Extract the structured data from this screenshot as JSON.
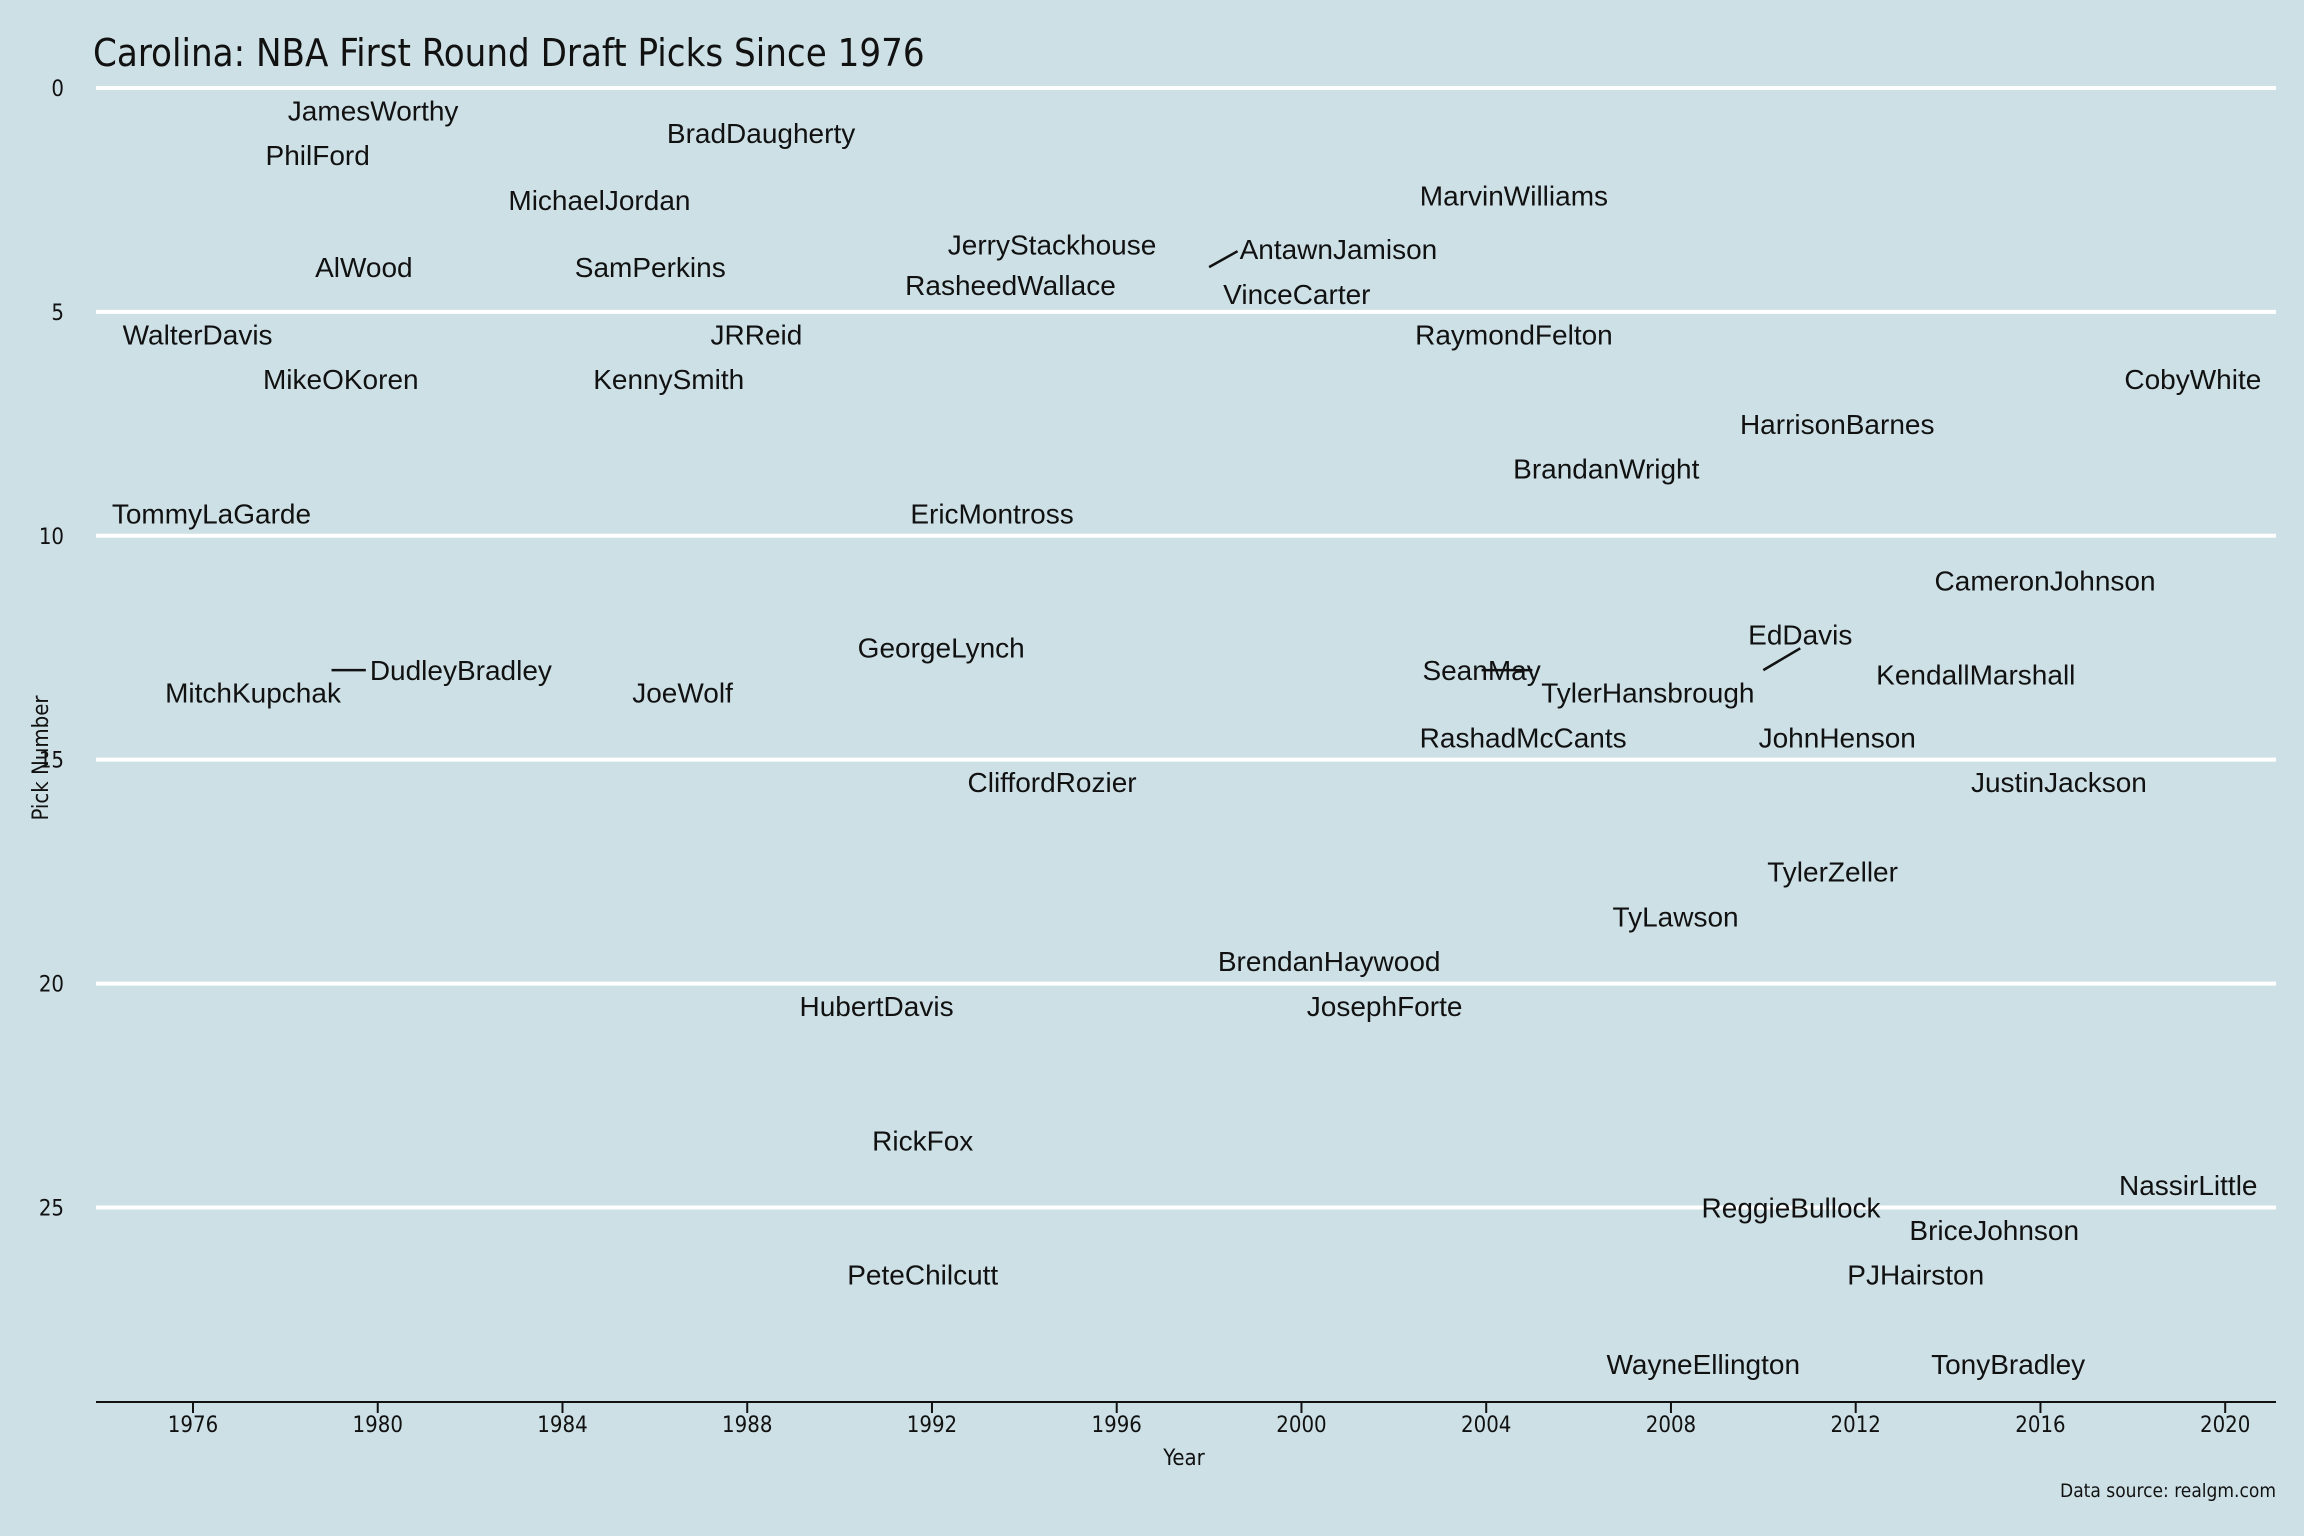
{
  "chart_data": {
    "type": "scatter",
    "title": "Carolina: NBA First Round Draft Picks Since 1976",
    "xlabel": "Year",
    "ylabel": "Pick Number",
    "caption": "Data source: realgm.com",
    "xlim": [
      1973.9,
      2021.1
    ],
    "ylim": [
      0,
      29.3
    ],
    "y_reversed": true,
    "x_ticks": [
      1976,
      1980,
      1984,
      1988,
      1992,
      1996,
      2000,
      2004,
      2008,
      2012,
      2016,
      2020
    ],
    "y_ticks": [
      0,
      5,
      10,
      15,
      20,
      25
    ],
    "grid": "horizontal",
    "background": "#cde0e6",
    "points": [
      {
        "label": "JamesWorthy",
        "x": 1979.9,
        "y": 0.5
      },
      {
        "label": "PhilFord",
        "x": 1978.7,
        "y": 1.5
      },
      {
        "label": "BradDaugherty",
        "x": 1988.3,
        "y": 1.0
      },
      {
        "label": "MichaelJordan",
        "x": 1984.8,
        "y": 2.5
      },
      {
        "label": "MarvinWilliams",
        "x": 2004.6,
        "y": 2.4
      },
      {
        "label": "JerryStackhouse",
        "x": 1994.6,
        "y": 3.5
      },
      {
        "label": "AntawnJamison",
        "x": 2000.8,
        "y": 3.6
      },
      {
        "label": "AlWood",
        "x": 1979.7,
        "y": 4.0
      },
      {
        "label": "SamPerkins",
        "x": 1985.9,
        "y": 4.0
      },
      {
        "label": "RasheedWallace",
        "x": 1993.7,
        "y": 4.4
      },
      {
        "label": "VinceCarter",
        "x": 1999.9,
        "y": 4.6
      },
      {
        "label": "WalterDavis",
        "x": 1976.1,
        "y": 5.5
      },
      {
        "label": "JRReid",
        "x": 1988.2,
        "y": 5.5
      },
      {
        "label": "RaymondFelton",
        "x": 2004.6,
        "y": 5.5
      },
      {
        "label": "MikeOKoren",
        "x": 1979.2,
        "y": 6.5
      },
      {
        "label": "KennySmith",
        "x": 1986.3,
        "y": 6.5
      },
      {
        "label": "CobyWhite",
        "x": 2019.3,
        "y": 6.5
      },
      {
        "label": "HarrisonBarnes",
        "x": 2011.6,
        "y": 7.5
      },
      {
        "label": "BrandanWright",
        "x": 2006.6,
        "y": 8.5
      },
      {
        "label": "TommyLaGarde",
        "x": 1976.4,
        "y": 9.5
      },
      {
        "label": "EricMontross",
        "x": 1993.3,
        "y": 9.5
      },
      {
        "label": "CameronJohnson",
        "x": 2016.1,
        "y": 11.0
      },
      {
        "label": "GeorgeLynch",
        "x": 1992.2,
        "y": 12.5
      },
      {
        "label": "EdDavis",
        "x": 2010.8,
        "y": 12.2
      },
      {
        "label": "DudleyBradley",
        "x": 1981.8,
        "y": 13.0
      },
      {
        "label": "SeanMay",
        "x": 2003.9,
        "y": 13.0
      },
      {
        "label": "KendallMarshall",
        "x": 2014.6,
        "y": 13.1
      },
      {
        "label": "MitchKupchak",
        "x": 1977.3,
        "y": 13.5
      },
      {
        "label": "JoeWolf",
        "x": 1986.6,
        "y": 13.5
      },
      {
        "label": "TylerHansbrough",
        "x": 2007.5,
        "y": 13.5
      },
      {
        "label": "RashadMcCants",
        "x": 2004.8,
        "y": 14.5
      },
      {
        "label": "JohnHenson",
        "x": 2011.6,
        "y": 14.5
      },
      {
        "label": "CliffordRozier",
        "x": 1994.6,
        "y": 15.5
      },
      {
        "label": "JustinJackson",
        "x": 2016.4,
        "y": 15.5
      },
      {
        "label": "TylerZeller",
        "x": 2011.5,
        "y": 17.5
      },
      {
        "label": "TyLawson",
        "x": 2008.1,
        "y": 18.5
      },
      {
        "label": "BrendanHaywood",
        "x": 2000.6,
        "y": 19.5
      },
      {
        "label": "HubertDavis",
        "x": 1990.8,
        "y": 20.5
      },
      {
        "label": "JosephForte",
        "x": 2001.8,
        "y": 20.5
      },
      {
        "label": "RickFox",
        "x": 1991.8,
        "y": 23.5
      },
      {
        "label": "NassirLittle",
        "x": 2019.2,
        "y": 24.5
      },
      {
        "label": "ReggieBullock",
        "x": 2010.6,
        "y": 25.0
      },
      {
        "label": "BriceJohnson",
        "x": 2015.0,
        "y": 25.5
      },
      {
        "label": "PJHairston",
        "x": 2013.3,
        "y": 26.5
      },
      {
        "label": "PeteChilcutt",
        "x": 1991.8,
        "y": 26.5
      },
      {
        "label": "WayneEllington",
        "x": 2008.7,
        "y": 28.5
      },
      {
        "label": "TonyBradley",
        "x": 2015.3,
        "y": 28.5
      }
    ]
  }
}
